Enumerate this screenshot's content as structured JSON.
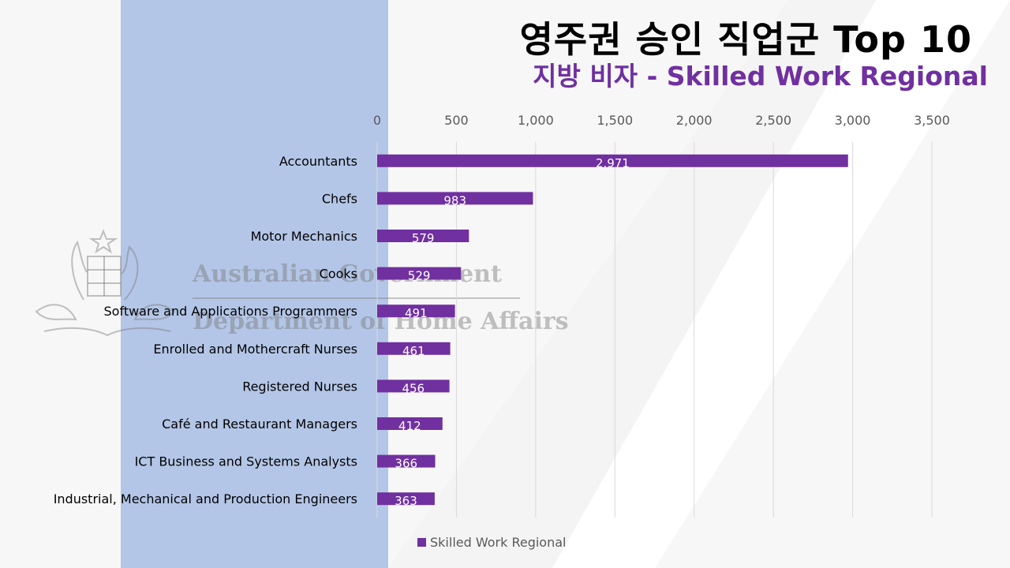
{
  "header": {
    "title": "영주권 승인 직업군 Top 10",
    "subtitle": "지방 비자 - Skilled Work Regional"
  },
  "watermark": {
    "line1": "Australian Government",
    "line2": "Department of Home Affairs"
  },
  "colors": {
    "bar": "#7030a0",
    "panel": "#b4c6e7",
    "title": "#000000",
    "subtitle": "#7030a0"
  },
  "chart_data": {
    "type": "bar",
    "orientation": "horizontal",
    "title": "영주권 승인 직업군 Top 10",
    "subtitle": "지방 비자 - Skilled Work Regional",
    "categories": [
      "Accountants",
      "Chefs",
      "Motor Mechanics",
      "Cooks",
      "Software and Applications Programmers",
      "Enrolled and Mothercraft Nurses",
      "Registered Nurses",
      "Café and Restaurant Managers",
      "ICT Business and Systems Analysts",
      "Industrial, Mechanical and Production Engineers"
    ],
    "series": [
      {
        "name": "Skilled Work Regional",
        "values": [
          2971,
          983,
          579,
          529,
          491,
          461,
          456,
          412,
          366,
          363
        ],
        "labels": [
          "2,971",
          "983",
          "579",
          "529",
          "491",
          "461",
          "456",
          "412",
          "366",
          "363"
        ]
      }
    ],
    "xlim": [
      0,
      3500
    ],
    "ticks": [
      0,
      500,
      1000,
      1500,
      2000,
      2500,
      3000,
      3500
    ],
    "tick_labels": [
      "0",
      "500",
      "1,000",
      "1,500",
      "2,000",
      "2,500",
      "3,000",
      "3,500"
    ],
    "axis_position": "top",
    "grid": true,
    "legend": "bottom"
  }
}
